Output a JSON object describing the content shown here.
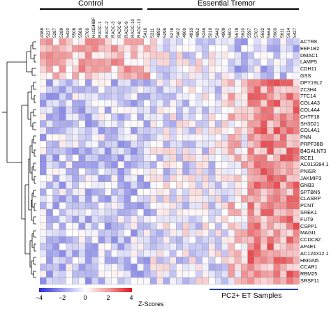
{
  "groups": {
    "control": "Control",
    "essential_tremor": "Essential Tremor",
    "pc2_et": "PC2+ ET Samples"
  },
  "samples": [
    "4388",
    "5227",
    "5287",
    "5289",
    "5420",
    "5508",
    "5586",
    "5700",
    "Hct15HBF",
    "RADC-1",
    "RADC-2",
    "RADC-3",
    "RADC-8",
    "RADC-9",
    "RADC-10",
    "RADC-13",
    "5416",
    "5311",
    "4892",
    "5295",
    "5278",
    "5402",
    "4900",
    "4910",
    "4952",
    "5246",
    "5016",
    "5442",
    "4909",
    "5501",
    "5679",
    "5620",
    "5597",
    "5707",
    "5632",
    "5664",
    "5600",
    "5611",
    "5614",
    "5427"
  ],
  "genes": [
    "ACTR8",
    "EEF1B2",
    "DMAC1",
    "LAMP5",
    "CDH11",
    "GSS",
    "DPY19L2",
    "ZC3H4",
    "TTC14",
    "COL4A3",
    "COL4A4",
    "CHTF18",
    "SH3D21",
    "COL4A1",
    "PNN",
    "PRPF38B",
    "B4GALNT3",
    "RCE1",
    "AC013394.1",
    "PNISR",
    "JAKMIP3",
    "GNB3",
    "SPTBN5",
    "CLASRP",
    "PCNT",
    "SREK1",
    "FUT9",
    "CSPP1",
    "MAGI1",
    "CCDC82",
    "AP4E1",
    "AC124312.1",
    "HMGN5",
    "CCAR1",
    "RBM25",
    "SRSF11"
  ],
  "legend": {
    "ticks": [
      "−4",
      "−2",
      "0",
      "2",
      "4"
    ],
    "title": "Z-Scores",
    "colors": {
      "low": "#2b2bd6",
      "mid": "#ffffff",
      "high": "#e0141a"
    }
  },
  "grid_color": "#9a9a9a"
}
